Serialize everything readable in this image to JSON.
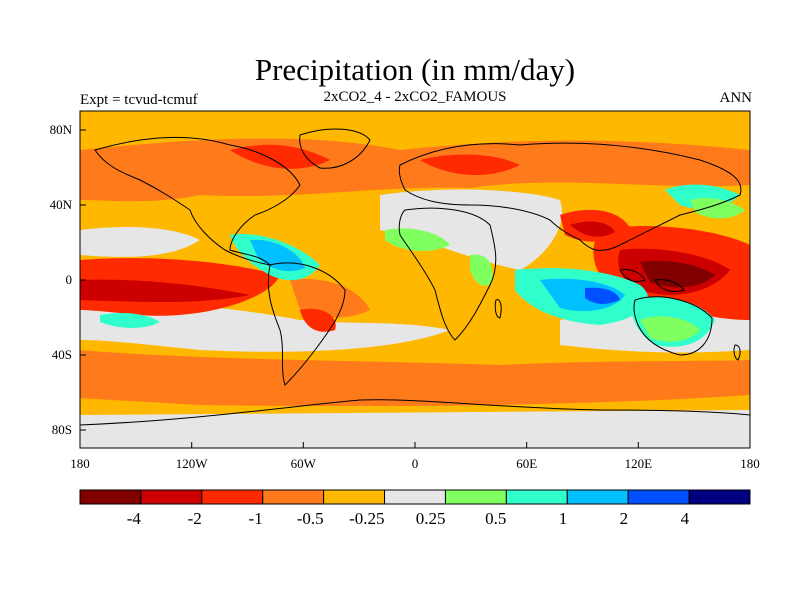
{
  "title": "Precipitation (in mm/day)",
  "subtitle_left": "Expt = tcvud-tcmuf",
  "subtitle_center": "2xCO2_4 - 2xCO2_FAMOUS",
  "subtitle_right": "ANN",
  "lat_labels": [
    "80N",
    "40N",
    "0",
    "40S",
    "80S"
  ],
  "lon_labels": [
    "180",
    "120W",
    "60W",
    "0",
    "60E",
    "120E",
    "180"
  ],
  "colorbar": {
    "colors": [
      "#800000",
      "#cc0000",
      "#ff2a00",
      "#ff7a1a",
      "#ffb800",
      "#e6e6e6",
      "#80ff60",
      "#30ffcc",
      "#00c0ff",
      "#0050ff",
      "#000080"
    ],
    "labels": [
      "-4",
      "-2",
      "-1",
      "-0.5",
      "-0.25",
      "0.25",
      "0.5",
      "1",
      "2",
      "4"
    ]
  }
}
